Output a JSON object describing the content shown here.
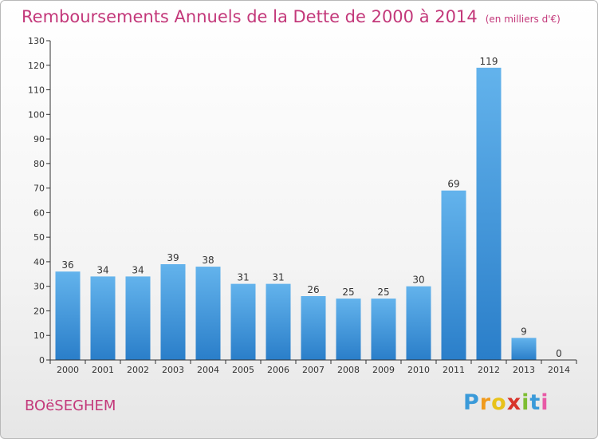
{
  "title": "Remboursements Annuels de la Dette de 2000 à 2014",
  "title_unit": "(en milliers d'€)",
  "city": "BOëSEGHEM",
  "logo": {
    "text": "Proxiti",
    "letters": [
      "P",
      "r",
      "o",
      "x",
      "i",
      "t",
      "i"
    ]
  },
  "colors": {
    "title": "#c3387a",
    "bar_light": "#63b3ec",
    "bar_dark": "#2a7ec9",
    "axis": "#333333"
  },
  "chart_data": {
    "type": "bar",
    "title": "Remboursements Annuels de la Dette de 2000 à 2014",
    "xlabel": "",
    "ylabel": "",
    "categories": [
      "2000",
      "2001",
      "2002",
      "2003",
      "2004",
      "2005",
      "2006",
      "2007",
      "2008",
      "2009",
      "2010",
      "2011",
      "2012",
      "2013",
      "2014"
    ],
    "values": [
      36,
      34,
      34,
      39,
      38,
      31,
      31,
      26,
      25,
      25,
      30,
      69,
      119,
      9,
      0
    ],
    "ylim": [
      0,
      130
    ],
    "yticks": [
      0,
      10,
      20,
      30,
      40,
      50,
      60,
      70,
      80,
      90,
      100,
      110,
      120,
      130
    ],
    "grid": false
  }
}
